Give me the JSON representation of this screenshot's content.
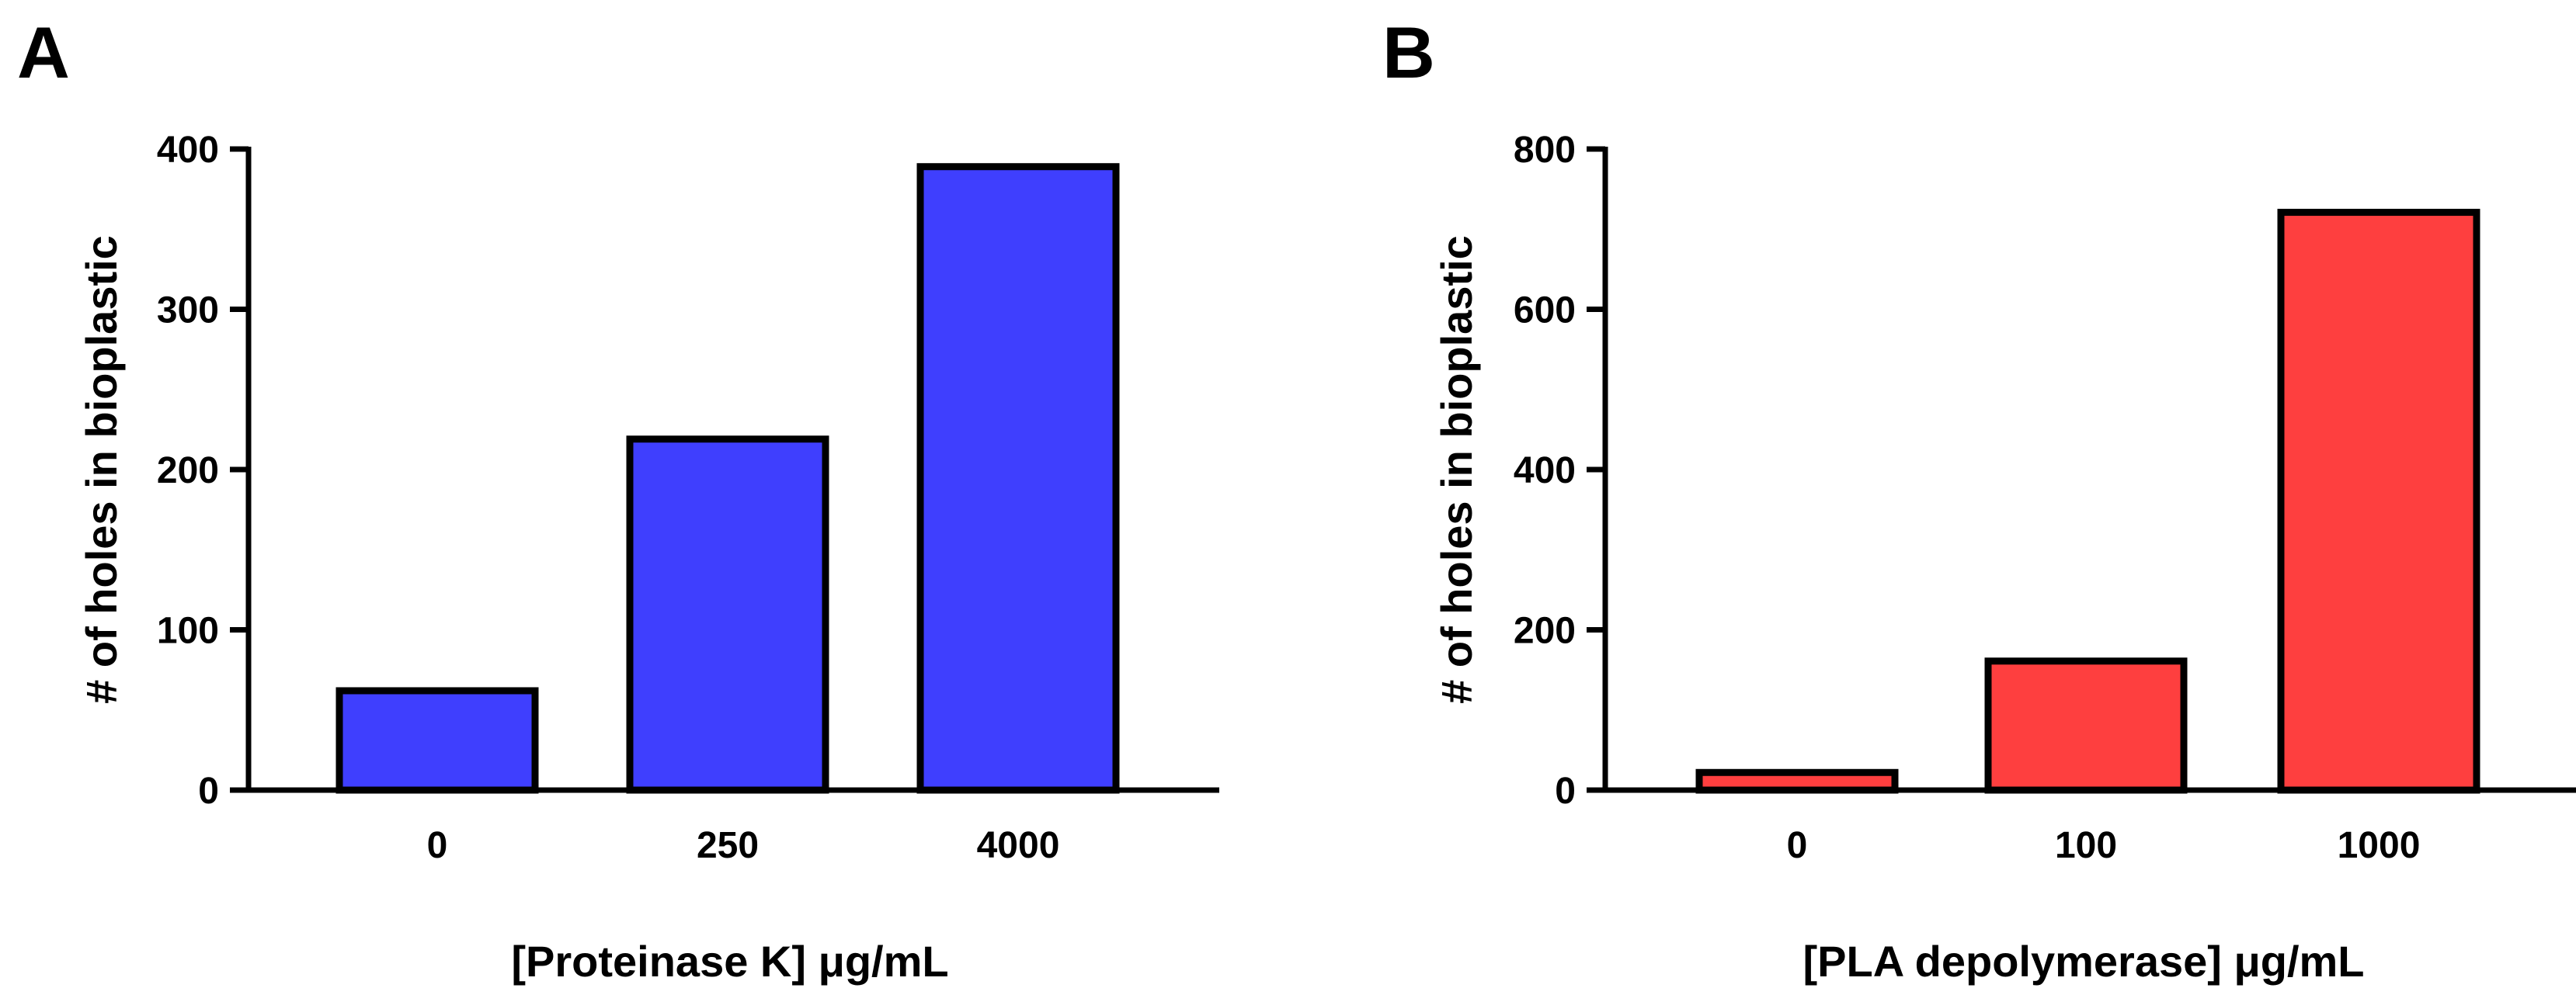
{
  "chart_data": [
    {
      "panel": "A",
      "type": "bar",
      "categories": [
        "0",
        "250",
        "4000"
      ],
      "values": [
        62,
        219,
        389
      ],
      "xlabel": "[Proteinase K] μg/mL",
      "ylabel": "# of holes in bioplastic",
      "ylim": [
        0,
        400
      ],
      "yticks": [
        "0",
        "100",
        "200",
        "300",
        "400"
      ],
      "bar_color": "#3f3ffe",
      "grid": false
    },
    {
      "panel": "B",
      "type": "bar",
      "categories": [
        "0",
        "100",
        "1000"
      ],
      "values": [
        22,
        161,
        721
      ],
      "xlabel": "[PLA depolymerase] μg/mL",
      "ylabel": "# of holes in bioplastic",
      "ylim": [
        0,
        800
      ],
      "yticks": [
        "0",
        "200",
        "400",
        "600",
        "800"
      ],
      "bar_color": "#fe3f3f",
      "grid": false
    }
  ]
}
